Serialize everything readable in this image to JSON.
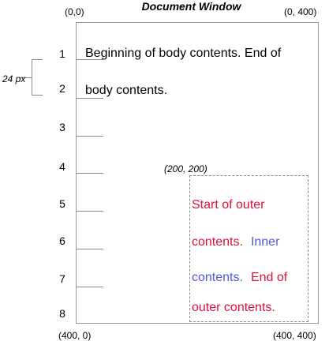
{
  "title": "Document Window",
  "corners": {
    "top_left": "(0,0)",
    "top_right": "(0, 400)",
    "bottom_left": "(400, 0)",
    "bottom_right": "(400, 400)"
  },
  "outer_origin": "(200, 200)",
  "line_height_label": "24 px",
  "line_numbers": [
    "1",
    "2",
    "3",
    "4",
    "5",
    "6",
    "7",
    "8"
  ],
  "body_lines": [
    "Beginning of body contents. End of",
    "body contents."
  ],
  "outer_lines": [
    [
      {
        "text": "Start of outer",
        "role": "outer"
      }
    ],
    [
      {
        "text": "contents.",
        "role": "outer"
      },
      {
        "text": "Inner",
        "role": "inner"
      }
    ],
    [
      {
        "text": "contents.",
        "role": "inner"
      },
      {
        "text": "End of",
        "role": "outer"
      }
    ],
    [
      {
        "text": "outer contents.",
        "role": "outer"
      }
    ]
  ],
  "colors": {
    "outer": "#e0103c",
    "inner": "#5555dd",
    "rule": "#888888"
  }
}
